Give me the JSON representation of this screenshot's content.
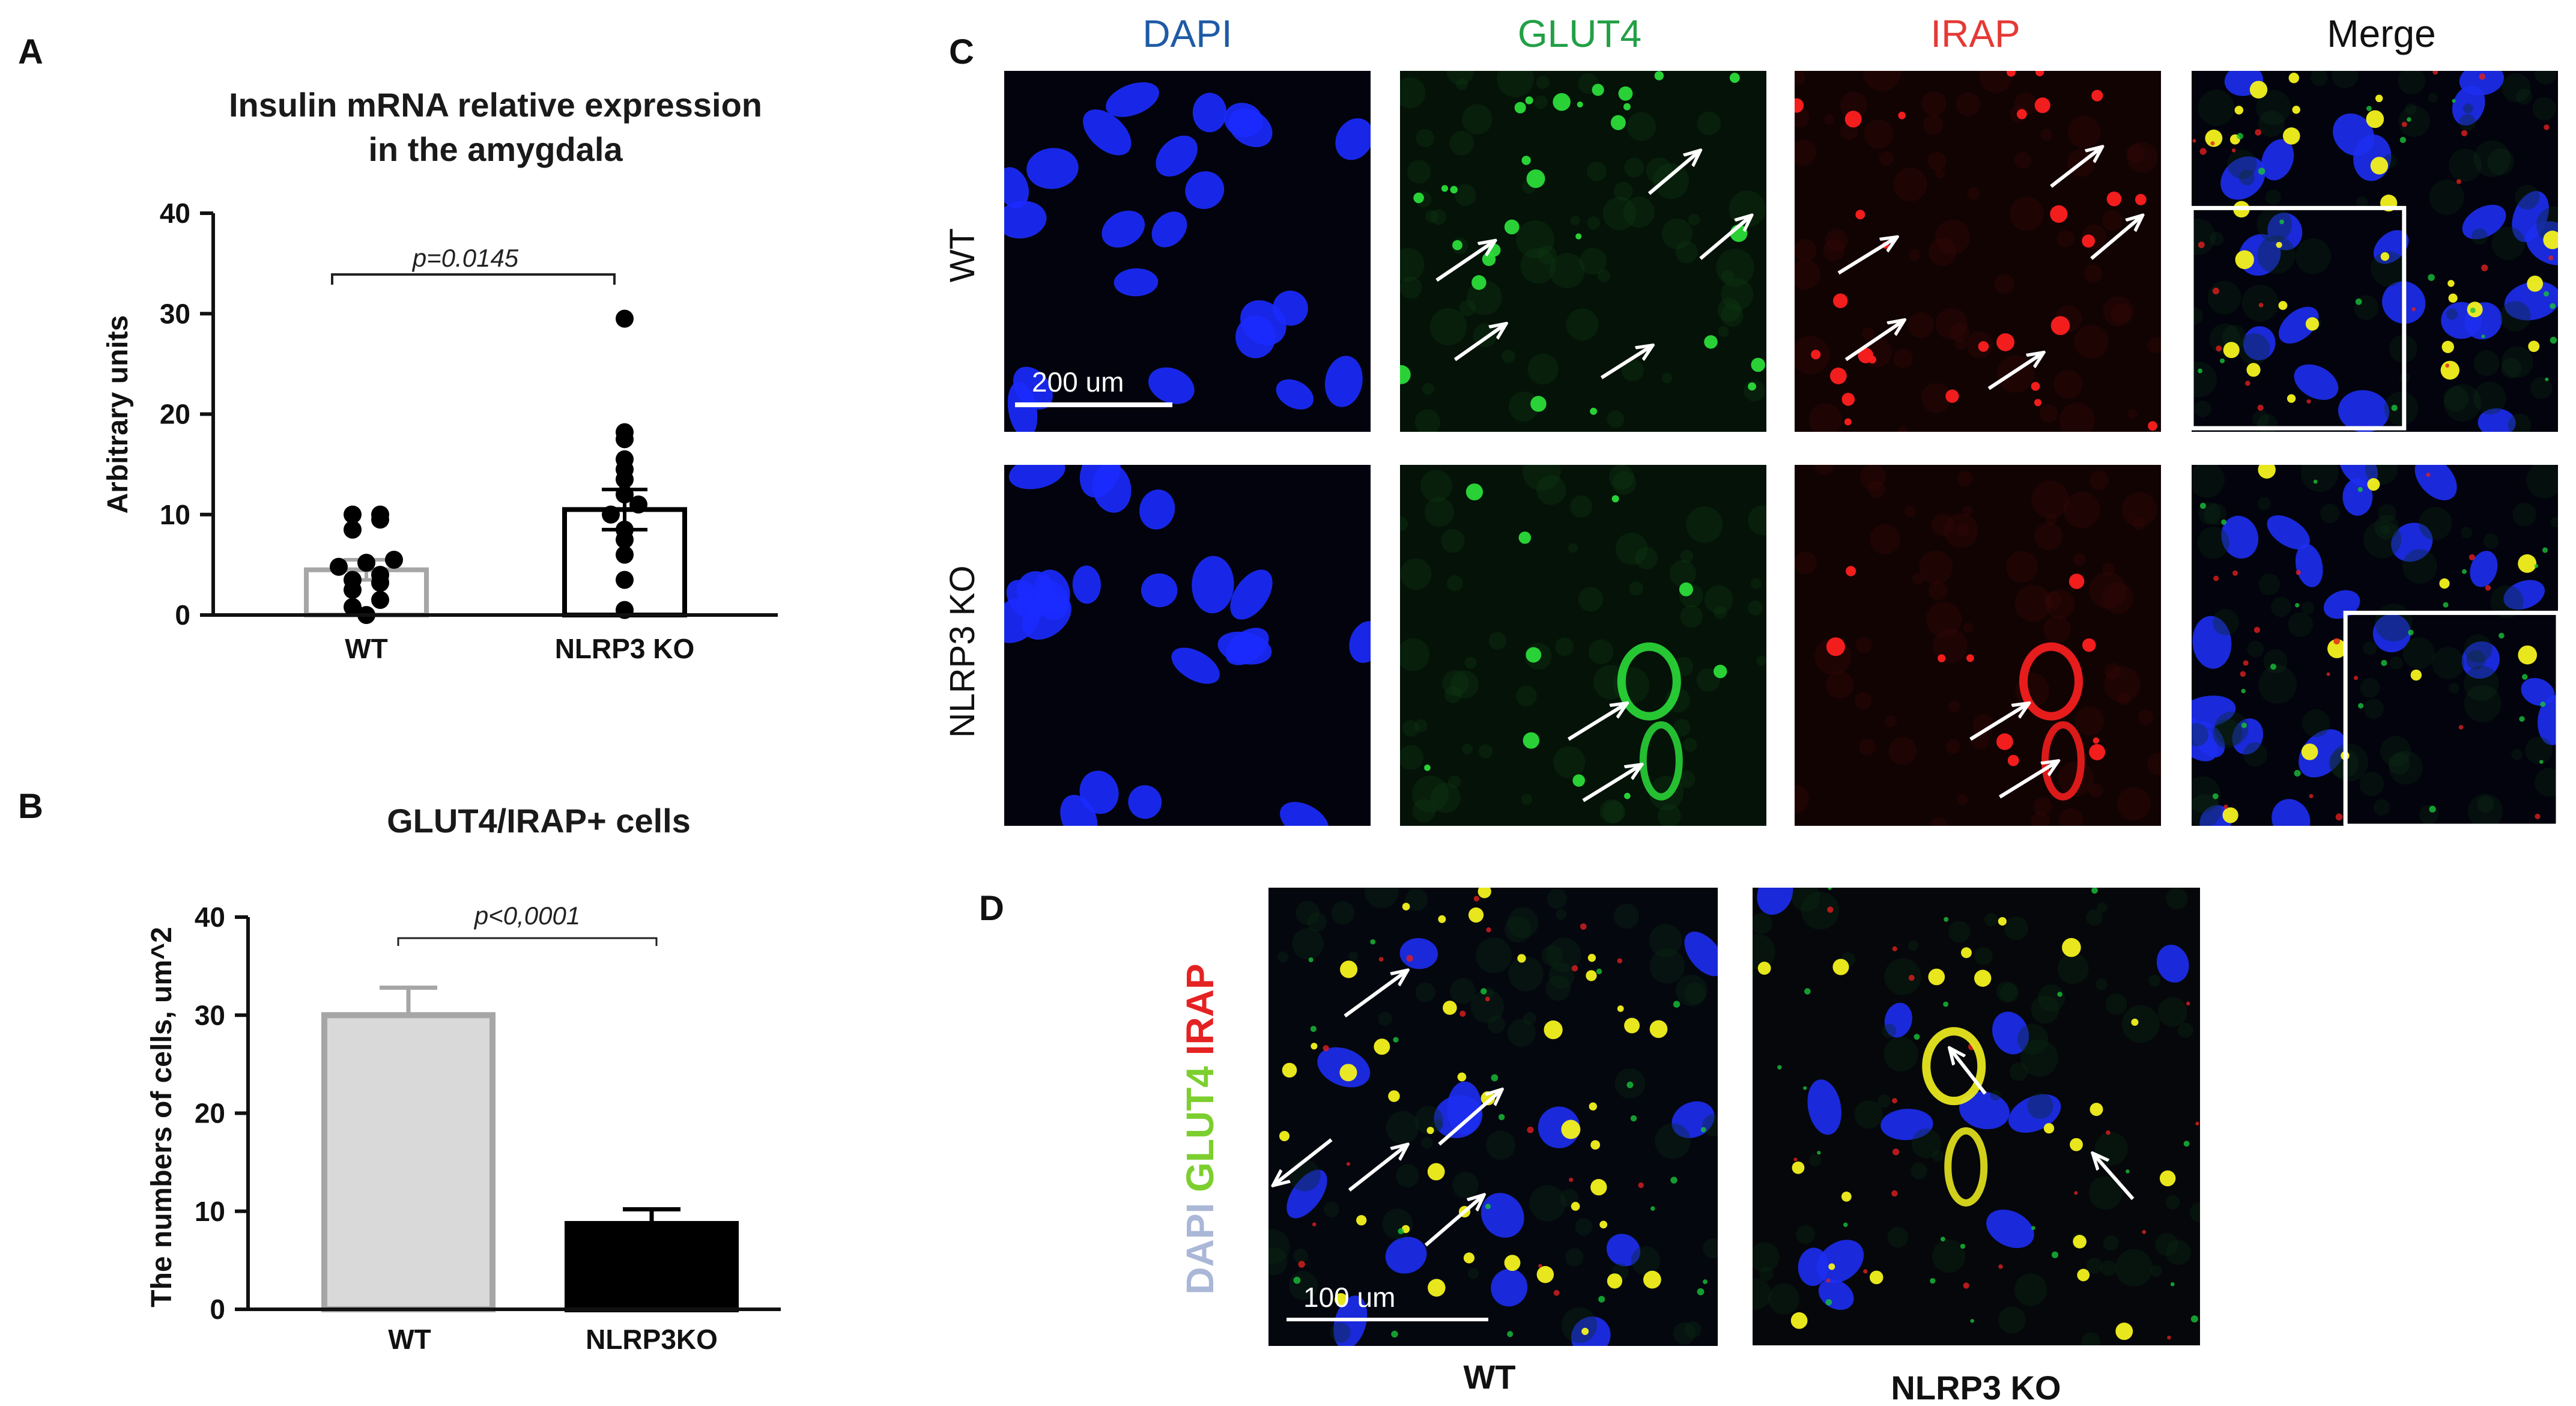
{
  "panels": {
    "a": "A",
    "b": "B",
    "c": "C",
    "d": "D"
  },
  "chart_data": [
    {
      "type": "bar",
      "title": "Insulin mRNA relative expression",
      "subtitle": "in the amygdala",
      "xlabel": "",
      "ylabel": "Arbitrary units",
      "ylim": [
        0,
        40
      ],
      "yticks": [
        0,
        10,
        20,
        30,
        40
      ],
      "categories": [
        "WT",
        "NLRP3 KO"
      ],
      "values": [
        4.5,
        10.5
      ],
      "error": [
        1.0,
        2.0
      ],
      "bar_colors": [
        "#a6a6a6",
        "#000000"
      ],
      "bar_fill": [
        "#ffffff",
        "#ffffff"
      ],
      "points": [
        [
          0.0,
          0.8,
          1.5,
          2.5,
          3.2,
          3.5,
          4.0,
          4.8,
          5.2,
          5.5,
          8.5,
          9.5,
          10.0,
          10.0
        ],
        [
          0.5,
          3.5,
          6.0,
          7.5,
          8.5,
          10.0,
          11.0,
          12.0,
          13.5,
          14.5,
          15.5,
          17.5,
          18.2,
          29.5
        ]
      ],
      "annotation": "p=0.0145"
    },
    {
      "type": "bar",
      "title": "GLUT4/IRAP+ cells",
      "xlabel": "",
      "ylabel": "The numbers of cells, um^2",
      "ylim": [
        0,
        40
      ],
      "yticks": [
        0,
        10,
        20,
        30,
        40
      ],
      "categories": [
        "WT",
        "NLRP3KO"
      ],
      "values": [
        30,
        8.7
      ],
      "error": [
        2.8,
        1.5
      ],
      "bar_colors": [
        "#a6a6a6",
        "#000000"
      ],
      "bar_fill": [
        "#d9d9d9",
        "#000000"
      ],
      "annotation": "p<0,0001"
    }
  ],
  "microscopy": {
    "columns": [
      "DAPI",
      "GLUT4",
      "IRAP",
      "Merge"
    ],
    "column_colors": [
      "#1f5aa6",
      "#22a045",
      "#e53935",
      "#111111"
    ],
    "rows": [
      "WT",
      "NLRP3 KO"
    ],
    "scale_bar_c": "200 um",
    "scale_bar_d": "100 um",
    "stain_words": [
      "DAPI",
      "GLUT4",
      "IRAP"
    ],
    "stain_colors": [
      "#aab7d6",
      "#7ccf2e",
      "#e52222"
    ],
    "d_labels": [
      "WT",
      "NLRP3 KO"
    ]
  }
}
